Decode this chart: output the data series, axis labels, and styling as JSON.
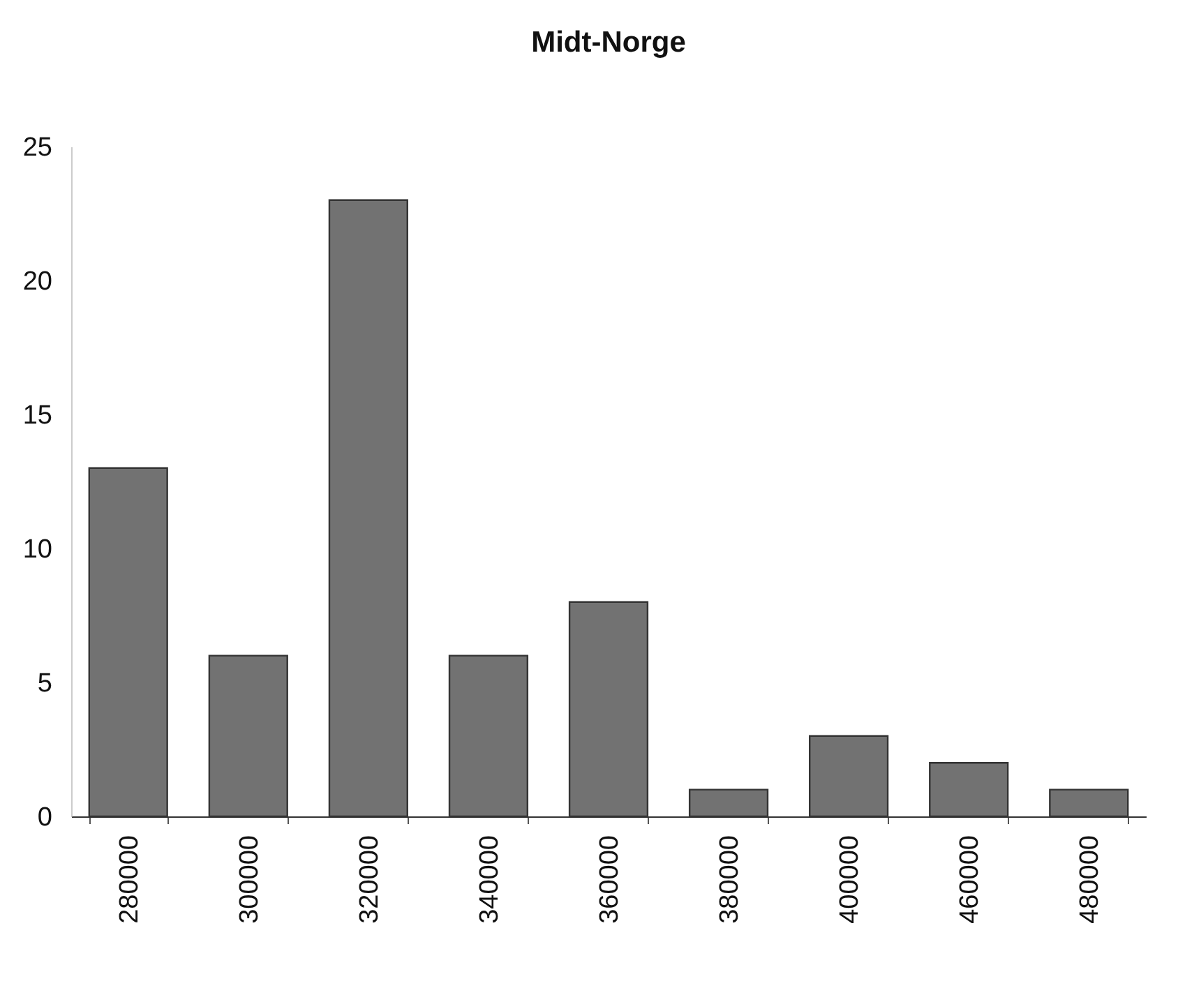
{
  "chart_data": {
    "type": "bar",
    "title": "Midt-Norge",
    "categories": [
      "280000",
      "300000",
      "320000",
      "340000",
      "360000",
      "380000",
      "400000",
      "460000",
      "480000"
    ],
    "values": [
      13,
      6,
      23,
      6,
      8,
      1,
      3,
      2,
      1
    ],
    "color": "#727272",
    "ylim": [
      0,
      25
    ],
    "yticks": [
      0,
      5,
      10,
      15,
      20,
      25
    ],
    "grid": false
  }
}
